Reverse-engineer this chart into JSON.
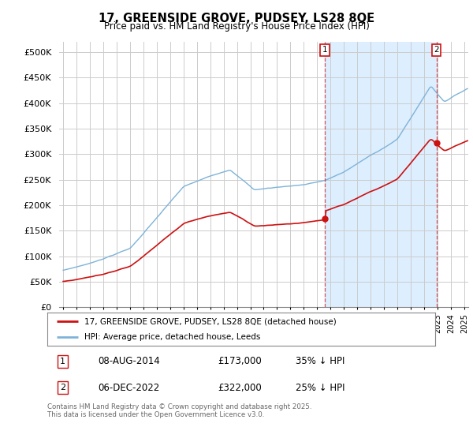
{
  "title": "17, GREENSIDE GROVE, PUDSEY, LS28 8QE",
  "subtitle": "Price paid vs. HM Land Registry's House Price Index (HPI)",
  "hpi_color": "#7eb3d8",
  "price_color": "#cc1111",
  "annotation1_price": 173000,
  "annotation2_price": 322000,
  "legend_label1": "17, GREENSIDE GROVE, PUDSEY, LS28 8QE (detached house)",
  "legend_label2": "HPI: Average price, detached house, Leeds",
  "footer": "Contains HM Land Registry data © Crown copyright and database right 2025.\nThis data is licensed under the Open Government Licence v3.0.",
  "ylim": [
    0,
    520000
  ],
  "yticks": [
    0,
    50000,
    100000,
    150000,
    200000,
    250000,
    300000,
    350000,
    400000,
    450000,
    500000
  ],
  "background_color": "#ffffff",
  "grid_color": "#cccccc",
  "shade_color": "#ddeeff",
  "ann1_year": 2014.583,
  "ann2_year": 2022.917,
  "xmin": 1994.7,
  "xmax": 2025.3
}
